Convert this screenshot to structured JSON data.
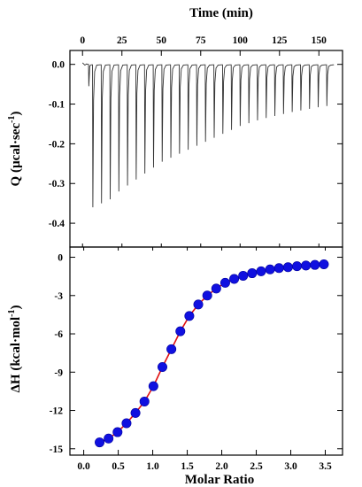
{
  "chart_data": [
    {
      "type": "line",
      "xlabel": "Time (min)",
      "ylabel": "Q  (µcal·sec",
      "ylabel_sup": "-1",
      "ylabel_close": ")",
      "xlim": [
        -8,
        165
      ],
      "ylim": [
        -0.46,
        0.035
      ],
      "xticks": [
        0,
        25,
        50,
        75,
        100,
        125,
        150
      ],
      "xtick_labels": [
        "0",
        "25",
        "50",
        "75",
        "100",
        "125",
        "150"
      ],
      "yticks": [
        0.0,
        -0.1,
        -0.2,
        -0.3,
        -0.4
      ],
      "ytick_labels": [
        "0.0",
        "-0.1",
        "-0.2",
        "-0.3",
        "-0.4"
      ],
      "series_color": "#333333",
      "injections": {
        "t": [
          6.5,
          12,
          17.5,
          23,
          28.5,
          34,
          39.5,
          45,
          50.5,
          56,
          61.5,
          67,
          72.5,
          78,
          83.5,
          89,
          94.5,
          100,
          105.5,
          111,
          116.5,
          122,
          127.5,
          133,
          138.5,
          144,
          149.5,
          155
        ],
        "q": [
          -0.36,
          -0.35,
          -0.34,
          -0.32,
          -0.305,
          -0.29,
          -0.275,
          -0.26,
          -0.245,
          -0.235,
          -0.225,
          -0.215,
          -0.205,
          -0.195,
          -0.185,
          -0.175,
          -0.165,
          -0.155,
          -0.148,
          -0.141,
          -0.135,
          -0.13,
          -0.125,
          -0.12,
          -0.116,
          -0.112,
          -0.108,
          -0.105
        ],
        "first_injection": {
          "t": 4,
          "q": -0.055
        }
      }
    },
    {
      "type": "scatter",
      "xlabel": "Molar Ratio",
      "ylabel": "ΔH  (kcal·mol",
      "ylabel_sup": "-1",
      "ylabel_close": ")",
      "xlim": [
        -0.2,
        3.75
      ],
      "ylim": [
        -15.5,
        0.8
      ],
      "xticks": [
        0.0,
        0.5,
        1.0,
        1.5,
        2.0,
        2.5,
        3.0,
        3.5
      ],
      "xtick_labels": [
        "0.0",
        "0.5",
        "1.0",
        "1.5",
        "2.0",
        "2.5",
        "3.0",
        "3.5"
      ],
      "yticks": [
        0,
        -3,
        -6,
        -9,
        -12,
        -15
      ],
      "ytick_labels": [
        "0",
        "-3",
        "-6",
        "-9",
        "-12",
        "-15"
      ],
      "point_color": "#1010e0",
      "fit_color": "#e01010",
      "x": [
        0.23,
        0.36,
        0.49,
        0.62,
        0.75,
        0.88,
        1.01,
        1.14,
        1.27,
        1.4,
        1.53,
        1.66,
        1.79,
        1.92,
        2.05,
        2.18,
        2.31,
        2.44,
        2.57,
        2.7,
        2.83,
        2.96,
        3.09,
        3.22,
        3.35,
        3.48
      ],
      "y": [
        -14.5,
        -14.2,
        -13.7,
        -13.0,
        -12.2,
        -11.3,
        -10.1,
        -8.6,
        -7.2,
        -5.8,
        -4.6,
        -3.7,
        -3.0,
        -2.45,
        -2.0,
        -1.7,
        -1.45,
        -1.25,
        -1.1,
        -0.95,
        -0.85,
        -0.78,
        -0.7,
        -0.65,
        -0.6,
        -0.55
      ]
    }
  ]
}
